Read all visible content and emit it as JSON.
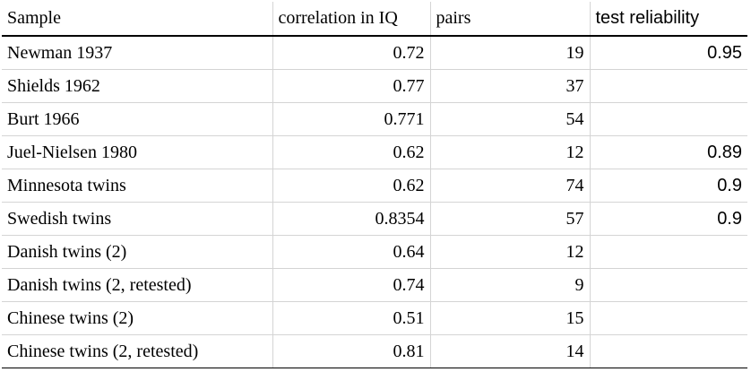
{
  "table": {
    "columns": [
      "Sample",
      "correlation in IQ",
      "pairs",
      "test reliability"
    ],
    "rows": [
      {
        "sample": "Newman 1937",
        "correlation": "0.72",
        "pairs": "19",
        "reliability": "0.95"
      },
      {
        "sample": "Shields 1962",
        "correlation": "0.77",
        "pairs": "37",
        "reliability": ""
      },
      {
        "sample": "Burt 1966",
        "correlation": "0.771",
        "pairs": "54",
        "reliability": ""
      },
      {
        "sample": "Juel-Nielsen 1980",
        "correlation": "0.62",
        "pairs": "12",
        "reliability": "0.89"
      },
      {
        "sample": "Minnesota twins",
        "correlation": "0.62",
        "pairs": "74",
        "reliability": "0.9"
      },
      {
        "sample": "Swedish twins",
        "correlation": "0.8354",
        "pairs": "57",
        "reliability": "0.9"
      },
      {
        "sample": "Danish twins (2)",
        "correlation": "0.64",
        "pairs": "12",
        "reliability": ""
      },
      {
        "sample": "Danish twins (2, retested)",
        "correlation": "0.74",
        "pairs": "9",
        "reliability": ""
      },
      {
        "sample": "Chinese twins (2)",
        "correlation": "0.51",
        "pairs": "15",
        "reliability": ""
      },
      {
        "sample": "Chinese twins (2, retested)",
        "correlation": "0.81",
        "pairs": "14",
        "reliability": ""
      }
    ]
  }
}
